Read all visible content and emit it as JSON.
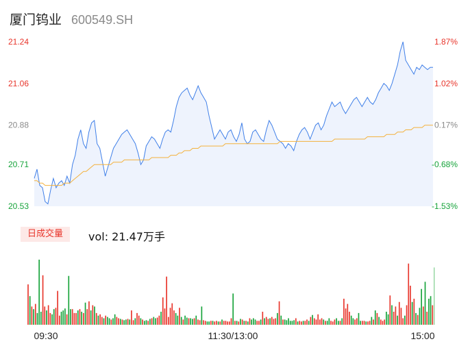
{
  "header": {
    "name": "厦门钨业",
    "code": "600549.SH"
  },
  "volume_panel": {
    "tag": "日成交量",
    "label": "vol: 21.47万手"
  },
  "colors": {
    "up": "#e8352b",
    "down": "#16a33a",
    "price_line": "#3f7fe8",
    "avg_line": "#f4b13b",
    "area": "#eef3fd"
  },
  "chart_data": [
    {
      "type": "line",
      "title": "",
      "y_ticks_left": [
        "21.24",
        "21.06",
        "20.88",
        "20.71",
        "20.53"
      ],
      "y_ticks_right": [
        "1.87%",
        "1.02%",
        "0.17%",
        "-0.68%",
        "-1.53%"
      ],
      "x_ticks": [
        "09:30",
        "11:30/13:00",
        "15:00"
      ],
      "ylim": [
        20.53,
        21.24
      ],
      "prev_close": 20.845,
      "grid": false,
      "series": [
        {
          "role": "price",
          "values": [
            20.65,
            20.69,
            20.62,
            20.61,
            20.55,
            20.54,
            20.6,
            20.65,
            20.61,
            20.63,
            20.64,
            20.62,
            20.66,
            20.63,
            20.71,
            20.75,
            20.82,
            20.86,
            20.8,
            20.78,
            20.85,
            20.89,
            20.9,
            20.8,
            20.78,
            20.72,
            20.66,
            20.7,
            20.74,
            20.78,
            20.8,
            20.82,
            20.84,
            20.85,
            20.86,
            20.84,
            20.82,
            20.8,
            20.76,
            20.71,
            20.73,
            20.79,
            20.81,
            20.83,
            20.82,
            20.8,
            20.78,
            20.82,
            20.85,
            20.86,
            20.85,
            20.9,
            20.96,
            21.0,
            21.02,
            21.03,
            21.04,
            21.01,
            20.99,
            21.02,
            21.05,
            21.02,
            21.0,
            20.98,
            20.92,
            20.87,
            20.82,
            20.84,
            20.86,
            20.84,
            20.82,
            20.85,
            20.86,
            20.83,
            20.81,
            20.84,
            20.89,
            20.82,
            20.8,
            20.81,
            20.85,
            20.86,
            20.84,
            20.82,
            20.81,
            20.86,
            20.9,
            20.88,
            20.85,
            20.82,
            20.81,
            20.8,
            20.78,
            20.8,
            20.79,
            20.77,
            20.81,
            20.84,
            20.86,
            20.87,
            20.85,
            20.82,
            20.85,
            20.88,
            20.89,
            20.86,
            20.88,
            20.92,
            20.95,
            20.98,
            20.96,
            20.97,
            20.98,
            20.95,
            20.93,
            20.95,
            20.97,
            20.99,
            21.0,
            20.98,
            20.96,
            20.98,
            21.0,
            20.98,
            20.97,
            20.99,
            21.02,
            21.04,
            21.06,
            21.05,
            21.03,
            21.06,
            21.1,
            21.14,
            21.2,
            21.24,
            21.16,
            21.14,
            21.12,
            21.1,
            21.13,
            21.12,
            21.14,
            21.13,
            21.12,
            21.13,
            21.13
          ]
        },
        {
          "role": "average",
          "values": [
            20.64,
            20.64,
            20.63,
            20.63,
            20.62,
            20.62,
            20.62,
            20.62,
            20.62,
            20.62,
            20.62,
            20.63,
            20.63,
            20.63,
            20.64,
            20.65,
            20.66,
            20.67,
            20.68,
            20.68,
            20.69,
            20.7,
            20.71,
            20.71,
            20.71,
            20.71,
            20.71,
            20.71,
            20.71,
            20.72,
            20.72,
            20.72,
            20.72,
            20.73,
            20.73,
            20.73,
            20.73,
            20.73,
            20.73,
            20.73,
            20.73,
            20.73,
            20.73,
            20.74,
            20.74,
            20.74,
            20.74,
            20.74,
            20.74,
            20.74,
            20.75,
            20.75,
            20.75,
            20.76,
            20.76,
            20.77,
            20.77,
            20.77,
            20.78,
            20.78,
            20.78,
            20.79,
            20.79,
            20.79,
            20.79,
            20.79,
            20.79,
            20.79,
            20.79,
            20.79,
            20.8,
            20.8,
            20.8,
            20.8,
            20.8,
            20.8,
            20.8,
            20.8,
            20.8,
            20.8,
            20.8,
            20.8,
            20.8,
            20.8,
            20.8,
            20.8,
            20.8,
            20.8,
            20.8,
            20.8,
            20.81,
            20.81,
            20.81,
            20.81,
            20.81,
            20.81,
            20.81,
            20.81,
            20.81,
            20.81,
            20.81,
            20.81,
            20.81,
            20.81,
            20.81,
            20.81,
            20.81,
            20.81,
            20.81,
            20.81,
            20.82,
            20.82,
            20.82,
            20.82,
            20.82,
            20.82,
            20.82,
            20.82,
            20.82,
            20.82,
            20.82,
            20.82,
            20.83,
            20.83,
            20.83,
            20.83,
            20.83,
            20.83,
            20.83,
            20.84,
            20.84,
            20.84,
            20.84,
            20.85,
            20.85,
            20.85,
            20.86,
            20.86,
            20.86,
            20.87,
            20.87,
            20.87,
            20.87,
            20.88,
            20.88,
            20.88,
            20.88
          ]
        }
      ]
    },
    {
      "type": "bar",
      "title": "",
      "ylabel": "",
      "values": [
        0.62,
        0.44,
        0.28,
        0.24,
        0.32,
        0.18,
        1.0,
        0.2,
        0.76,
        0.28,
        0.22,
        0.3,
        0.18,
        0.16,
        0.24,
        0.26,
        0.52,
        0.14,
        0.2,
        0.22,
        0.25,
        0.16,
        0.75,
        0.24,
        0.24,
        0.18,
        0.18,
        0.22,
        0.24,
        0.2,
        0.18,
        0.34,
        0.24,
        0.36,
        0.22,
        0.3,
        0.28,
        0.18,
        0.14,
        0.16,
        0.12,
        0.1,
        0.14,
        0.12,
        0.1,
        0.08,
        0.1,
        0.16,
        0.12,
        0.1,
        0.09,
        0.08,
        0.07,
        0.08,
        0.09,
        0.08,
        0.22,
        0.07,
        0.1,
        0.18,
        0.14,
        0.1,
        0.08,
        0.06,
        0.07,
        0.06,
        0.09,
        0.1,
        0.12,
        0.1,
        0.11,
        0.14,
        0.2,
        0.42,
        0.25,
        0.74,
        0.12,
        0.26,
        0.33,
        0.22,
        0.18,
        0.14,
        0.26,
        0.12,
        0.08,
        0.14,
        0.11,
        0.1,
        0.1,
        0.09,
        0.1,
        0.14,
        0.08,
        0.07,
        0.28,
        0.07,
        0.06,
        0.05,
        0.05,
        0.06,
        0.06,
        0.05,
        0.06,
        0.05,
        0.05,
        0.08,
        0.06,
        0.06,
        0.05,
        0.05,
        0.1,
        0.48,
        0.06,
        0.06,
        0.05,
        0.09,
        0.08,
        0.06,
        0.06,
        0.05,
        0.1,
        0.08,
        0.1,
        0.08,
        0.06,
        0.06,
        0.08,
        0.2,
        0.1,
        0.12,
        0.09,
        0.1,
        0.12,
        0.09,
        0.1,
        0.18,
        0.36,
        0.14,
        0.08,
        0.08,
        0.07,
        0.1,
        0.06,
        0.06,
        0.07,
        0.1,
        0.05,
        0.06,
        0.05,
        0.06,
        0.06,
        0.08,
        0.06,
        0.12,
        0.15,
        0.1,
        0.08,
        0.16,
        0.08,
        0.1,
        0.08,
        0.06,
        0.06,
        0.1,
        0.06,
        0.05,
        0.08,
        0.1,
        0.06,
        0.06,
        0.1,
        0.4,
        0.25,
        0.32,
        0.2,
        0.14,
        0.1,
        0.08,
        0.1,
        0.18,
        0.06,
        0.06,
        0.06,
        0.05,
        0.05,
        0.06,
        0.12,
        0.08,
        0.22,
        0.18,
        0.12,
        0.08,
        0.06,
        0.08,
        0.2,
        0.16,
        0.45,
        0.3,
        0.2,
        0.28,
        0.14,
        0.35,
        0.26,
        0.1,
        0.14,
        0.3,
        0.94,
        0.6,
        0.35,
        0.4,
        0.18,
        0.15,
        0.26,
        0.55,
        0.28,
        0.66,
        0.2,
        0.4,
        0.44,
        0.3
      ],
      "directions": [
        "up",
        "down",
        "up",
        "down",
        "up",
        "down",
        "down",
        "down",
        "up",
        "up",
        "down",
        "up",
        "up",
        "down",
        "down",
        "up",
        "up",
        "up",
        "down",
        "down",
        "down",
        "up",
        "down",
        "down",
        "up",
        "up",
        "up",
        "down",
        "up",
        "down",
        "up",
        "down",
        "up",
        "up",
        "down",
        "up",
        "down",
        "up",
        "down",
        "up",
        "up",
        "down",
        "up",
        "down",
        "down",
        "up",
        "down",
        "down",
        "up",
        "up",
        "down",
        "up",
        "down",
        "down",
        "up",
        "down",
        "up",
        "up",
        "down",
        "up",
        "up",
        "down",
        "up",
        "down",
        "down",
        "up",
        "down",
        "up",
        "down",
        "down",
        "up",
        "up",
        "down",
        "up",
        "up",
        "up",
        "up",
        "up",
        "up",
        "up",
        "down",
        "down",
        "up",
        "down",
        "up",
        "down",
        "down",
        "up",
        "down",
        "down",
        "up",
        "down",
        "up",
        "up",
        "down",
        "up",
        "up",
        "down",
        "down",
        "up",
        "down",
        "up",
        "up",
        "down",
        "up",
        "down",
        "up",
        "up",
        "up",
        "up",
        "up",
        "down",
        "up",
        "down",
        "up",
        "down",
        "up",
        "down",
        "up",
        "down",
        "up",
        "down",
        "down",
        "down",
        "up",
        "up",
        "down",
        "up",
        "down",
        "up",
        "up",
        "down",
        "up",
        "up",
        "up",
        "down",
        "up",
        "down",
        "up",
        "down",
        "down",
        "down",
        "down",
        "down",
        "down",
        "up",
        "down",
        "up",
        "up",
        "down",
        "up",
        "up",
        "down",
        "up",
        "down",
        "up",
        "up",
        "up",
        "up",
        "up",
        "down",
        "up",
        "down",
        "down",
        "up",
        "up",
        "up",
        "down",
        "down",
        "up",
        "down",
        "up",
        "up",
        "up",
        "up",
        "down",
        "down",
        "up",
        "up",
        "down",
        "down",
        "up",
        "up",
        "down",
        "up",
        "up",
        "down",
        "up",
        "down",
        "up",
        "down",
        "up",
        "up",
        "up",
        "down",
        "down",
        "up",
        "down",
        "up",
        "up",
        "down",
        "up",
        "up",
        "up",
        "down",
        "up",
        "up",
        "up",
        "down",
        "up",
        "down",
        "up",
        "down",
        "down",
        "up",
        "down",
        "up",
        "down",
        "down",
        "up",
        "down"
      ],
      "last_bar": {
        "value": 0.88,
        "direction": "down"
      }
    }
  ]
}
